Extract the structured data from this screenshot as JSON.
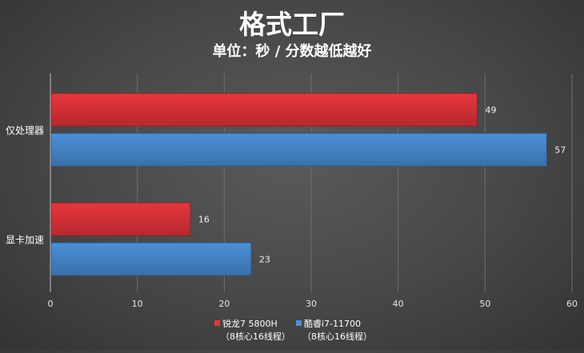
{
  "chart_data": {
    "type": "bar",
    "orientation": "horizontal",
    "title": "格式工厂",
    "subtitle": "单位：秒 / 分数越低越好",
    "categories": [
      "仅处理器",
      "显卡加速"
    ],
    "series": [
      {
        "name": "锐龙7 5800H",
        "name_line2": "（8核心16线程）",
        "color": "#e8353b",
        "values": [
          49,
          16
        ]
      },
      {
        "name": "酷睿i7-11700",
        "name_line2": "（8核心16线程）",
        "color": "#4a90d9",
        "values": [
          57,
          23
        ]
      }
    ],
    "xlim": [
      0,
      60
    ],
    "xticks": [
      0,
      10,
      20,
      30,
      40,
      50,
      60
    ],
    "grid": true,
    "legend": "bottom"
  }
}
